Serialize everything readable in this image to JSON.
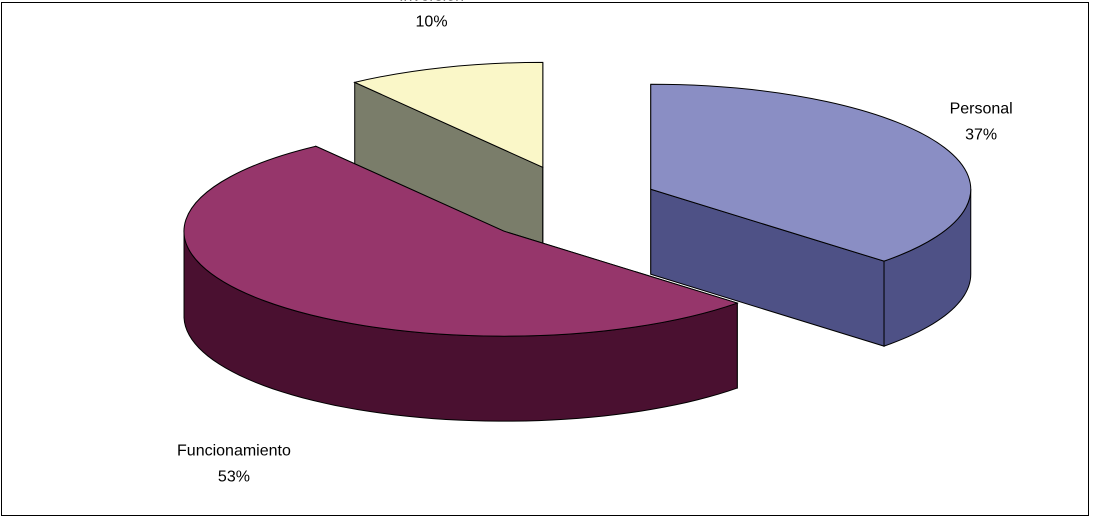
{
  "chart_data": {
    "type": "pie",
    "style": "3d-exploded",
    "title": "",
    "slices": [
      {
        "label": "Personal",
        "percent_label": "37%",
        "value": 37,
        "color": "#8a8ec4",
        "side_color": "#4e5186"
      },
      {
        "label": "Funcionamiento",
        "percent_label": "53%",
        "value": 53,
        "color": "#96366b",
        "side_color": "#4a1030"
      },
      {
        "label": "Inversión",
        "percent_label": "10%",
        "value": 10,
        "color": "#faf7c8",
        "side_color": "#7a7d6a"
      }
    ]
  }
}
